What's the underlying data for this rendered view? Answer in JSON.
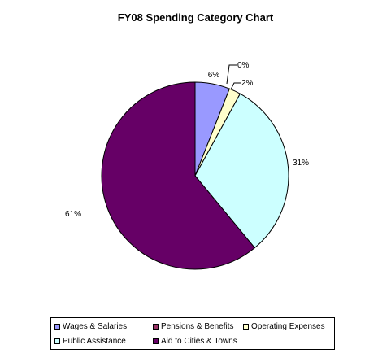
{
  "chart_data": {
    "type": "pie",
    "title": "FY08 Spending Category Chart",
    "slices": [
      {
        "name": "Wages & Salaries",
        "value": 6,
        "label": "6%",
        "color": "#9999ff"
      },
      {
        "name": "Pensions & Benefits",
        "value": 0,
        "label": "0%",
        "color": "#993366"
      },
      {
        "name": "Operating Expenses",
        "value": 2,
        "label": "2%",
        "color": "#ffffcc"
      },
      {
        "name": "Public Assistance",
        "value": 31,
        "label": "31%",
        "color": "#ccffff"
      },
      {
        "name": "Aid to Cities & Towns",
        "value": 61,
        "label": "61%",
        "color": "#660066"
      }
    ],
    "legend_position": "bottom"
  }
}
